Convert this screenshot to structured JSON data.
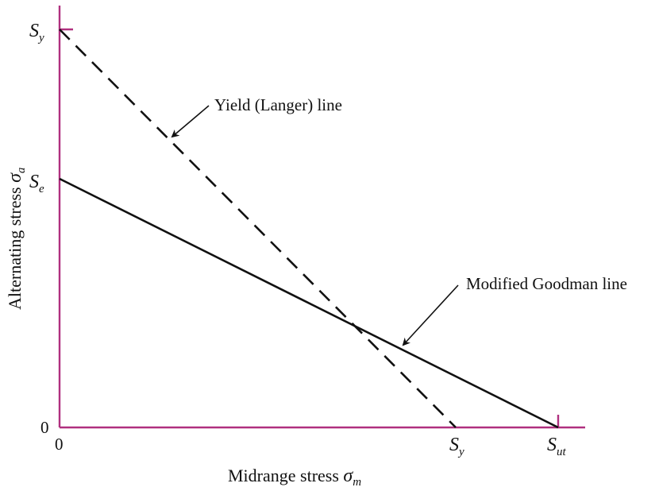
{
  "diagram": {
    "ylabel": {
      "text": "Alternating stress ",
      "symbol": "σ",
      "subscript": "a"
    },
    "xlabel": {
      "text": "Midrange stress ",
      "symbol": "σ",
      "subscript": "m"
    },
    "y_ticks": {
      "sy": {
        "symbol": "S",
        "subscript": "y"
      },
      "se": {
        "symbol": "S",
        "subscript": "e"
      },
      "zero": "0"
    },
    "x_ticks": {
      "zero": "0",
      "sy": {
        "symbol": "S",
        "subscript": "y"
      },
      "sut": {
        "symbol": "S",
        "subscript": "ut"
      }
    },
    "annotations": {
      "yield": "Yield (Langer) line",
      "goodman": "Modified Goodman line"
    },
    "colors": {
      "axis": "#b0307f",
      "line": "#111111"
    }
  }
}
